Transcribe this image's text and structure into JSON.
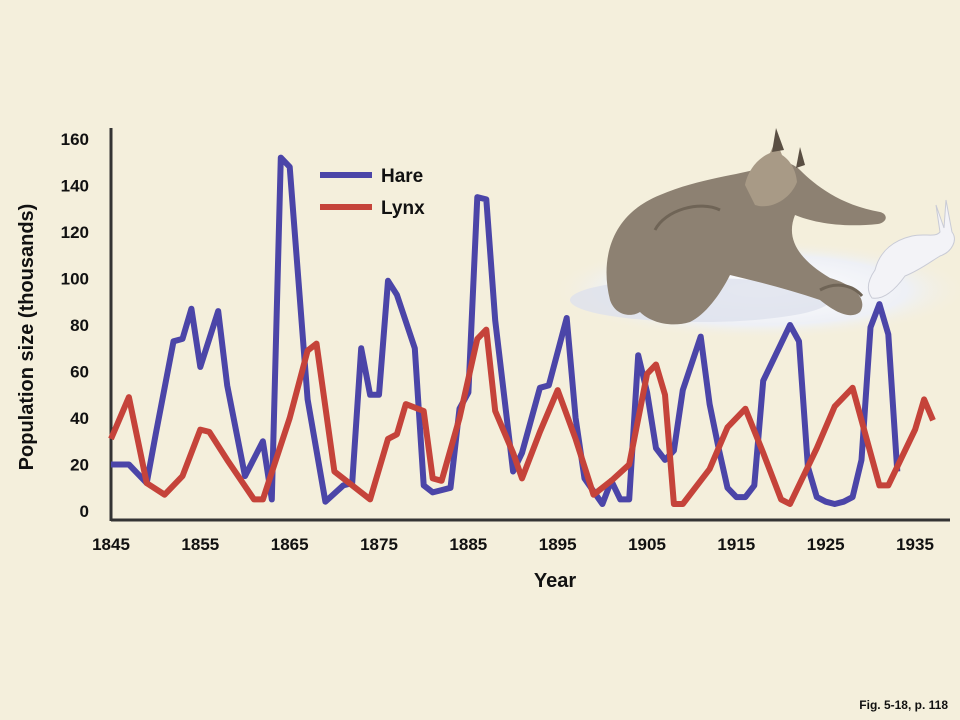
{
  "chart_data": {
    "type": "line",
    "xlabel": "Year",
    "ylabel": "Population size (thousands)",
    "xlim": [
      1845,
      1937
    ],
    "ylim": [
      0,
      160
    ],
    "x_ticks": [
      1845,
      1855,
      1865,
      1875,
      1885,
      1895,
      1905,
      1915,
      1925,
      1935
    ],
    "y_ticks": [
      0,
      20,
      40,
      60,
      80,
      100,
      120,
      140,
      160
    ],
    "legend_position": "top-left-center",
    "grid": false,
    "series": [
      {
        "name": "Hare",
        "color": "#4b45a8",
        "points": [
          [
            1845,
            20
          ],
          [
            1847,
            20
          ],
          [
            1848,
            16
          ],
          [
            1849,
            12
          ],
          [
            1850,
            33
          ],
          [
            1852,
            73
          ],
          [
            1853,
            74
          ],
          [
            1854,
            87
          ],
          [
            1855,
            62
          ],
          [
            1857,
            86
          ],
          [
            1858,
            54
          ],
          [
            1860,
            15
          ],
          [
            1862,
            30
          ],
          [
            1863,
            5
          ],
          [
            1864,
            152
          ],
          [
            1865,
            148
          ],
          [
            1867,
            48
          ],
          [
            1869,
            4
          ],
          [
            1871,
            11
          ],
          [
            1872,
            12
          ],
          [
            1873,
            70
          ],
          [
            1874,
            50
          ],
          [
            1875,
            50
          ],
          [
            1876,
            99
          ],
          [
            1877,
            93
          ],
          [
            1879,
            70
          ],
          [
            1880,
            11
          ],
          [
            1881,
            8
          ],
          [
            1882,
            9
          ],
          [
            1883,
            10
          ],
          [
            1884,
            44
          ],
          [
            1885,
            51
          ],
          [
            1886,
            135
          ],
          [
            1887,
            134
          ],
          [
            1888,
            82
          ],
          [
            1890,
            17
          ],
          [
            1891,
            25
          ],
          [
            1893,
            53
          ],
          [
            1894,
            54
          ],
          [
            1896,
            83
          ],
          [
            1897,
            40
          ],
          [
            1898,
            14
          ],
          [
            1900,
            3
          ],
          [
            1901,
            13
          ],
          [
            1902,
            5
          ],
          [
            1903,
            5
          ],
          [
            1904,
            67
          ],
          [
            1905,
            51
          ],
          [
            1906,
            27
          ],
          [
            1907,
            22
          ],
          [
            1908,
            26
          ],
          [
            1909,
            52
          ],
          [
            1911,
            75
          ],
          [
            1912,
            46
          ],
          [
            1913,
            27
          ],
          [
            1914,
            10
          ],
          [
            1915,
            6
          ],
          [
            1916,
            6
          ],
          [
            1917,
            11
          ],
          [
            1918,
            56
          ],
          [
            1921,
            80
          ],
          [
            1922,
            73
          ],
          [
            1923,
            19
          ],
          [
            1924,
            6
          ],
          [
            1925,
            4
          ],
          [
            1926,
            3
          ],
          [
            1927,
            4
          ],
          [
            1928,
            6
          ],
          [
            1929,
            22
          ],
          [
            1930,
            79
          ],
          [
            1931,
            89
          ],
          [
            1932,
            76
          ],
          [
            1933,
            17
          ]
        ]
      },
      {
        "name": "Lynx",
        "color": "#c5433a",
        "points": [
          [
            1845,
            31
          ],
          [
            1847,
            49
          ],
          [
            1849,
            12
          ],
          [
            1851,
            7
          ],
          [
            1853,
            15
          ],
          [
            1855,
            35
          ],
          [
            1856,
            34
          ],
          [
            1858,
            22
          ],
          [
            1861,
            5
          ],
          [
            1862,
            5
          ],
          [
            1865,
            40
          ],
          [
            1867,
            69
          ],
          [
            1868,
            72
          ],
          [
            1870,
            17
          ],
          [
            1872,
            11
          ],
          [
            1874,
            5
          ],
          [
            1876,
            31
          ],
          [
            1877,
            33
          ],
          [
            1878,
            46
          ],
          [
            1880,
            43
          ],
          [
            1881,
            14
          ],
          [
            1882,
            13
          ],
          [
            1884,
            40
          ],
          [
            1886,
            74
          ],
          [
            1887,
            78
          ],
          [
            1888,
            43
          ],
          [
            1890,
            25
          ],
          [
            1891,
            14
          ],
          [
            1893,
            34
          ],
          [
            1895,
            52
          ],
          [
            1897,
            31
          ],
          [
            1899,
            7
          ],
          [
            1901,
            13
          ],
          [
            1903,
            20
          ],
          [
            1905,
            59
          ],
          [
            1906,
            63
          ],
          [
            1907,
            50
          ],
          [
            1908,
            3
          ],
          [
            1909,
            3
          ],
          [
            1912,
            18
          ],
          [
            1914,
            36
          ],
          [
            1916,
            44
          ],
          [
            1918,
            25
          ],
          [
            1920,
            5
          ],
          [
            1921,
            3
          ],
          [
            1924,
            27
          ],
          [
            1926,
            45
          ],
          [
            1928,
            53
          ],
          [
            1931,
            11
          ],
          [
            1932,
            11
          ],
          [
            1935,
            35
          ],
          [
            1936,
            48
          ],
          [
            1937,
            39
          ]
        ]
      }
    ]
  },
  "caption": "Fig. 5-18, p. 118"
}
